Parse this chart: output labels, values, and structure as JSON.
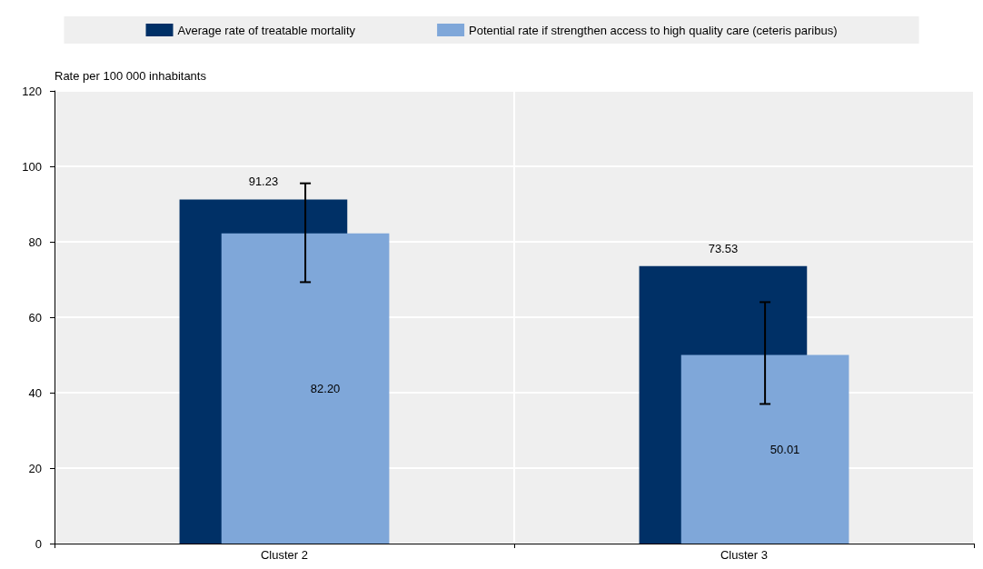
{
  "chart_data": {
    "type": "bar",
    "ylabel": "Rate per 100 000 inhabitants",
    "categories": [
      "Cluster 2",
      "Cluster 3"
    ],
    "series": [
      {
        "name": "Average rate of treatable mortality",
        "color": "#003066",
        "values": [
          91.23,
          73.53
        ],
        "value_labels": [
          "91.23",
          "73.53"
        ]
      },
      {
        "name": "Potential rate if strengthen access to high quality care (ceteris paribus)",
        "color": "#7fa7d9",
        "values": [
          82.2,
          50.01
        ],
        "value_labels": [
          "82.20",
          "50.01"
        ],
        "errors": [
          [
            69.3,
            95.5
          ],
          [
            37.0,
            64.0
          ]
        ]
      }
    ],
    "ylim": [
      0,
      120
    ],
    "yticks": [
      0,
      20,
      40,
      60,
      80,
      100,
      120
    ],
    "grid": true,
    "legend": "top"
  }
}
